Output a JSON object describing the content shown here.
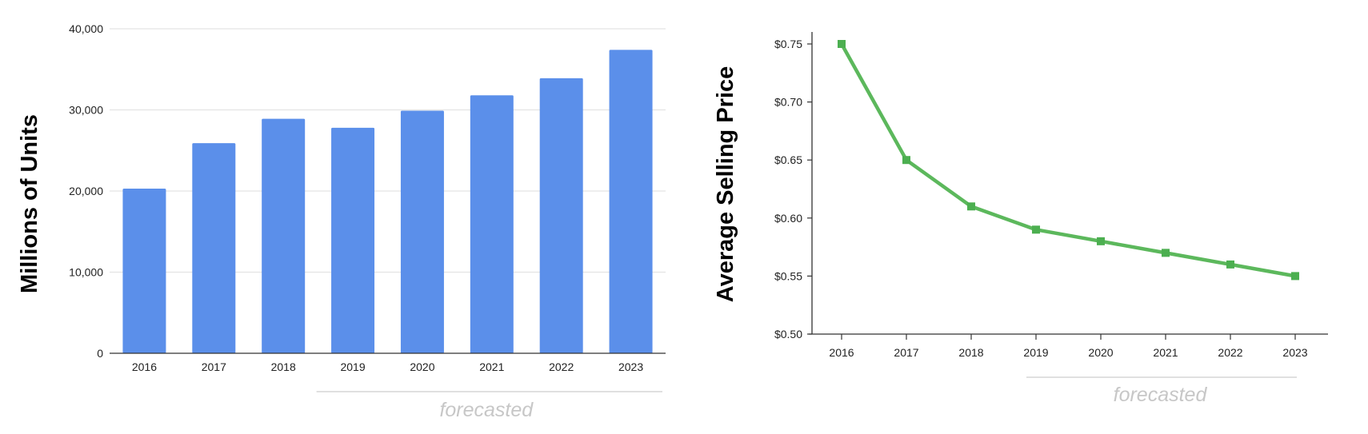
{
  "chart_data": [
    {
      "type": "bar",
      "title": "",
      "xlabel": "",
      "ylabel": "Millions of Units",
      "categories": [
        "2016",
        "2017",
        "2018",
        "2019",
        "2020",
        "2021",
        "2022",
        "2023"
      ],
      "values": [
        20300,
        25900,
        28900,
        27800,
        29900,
        31800,
        33900,
        37400
      ],
      "ylim": [
        0,
        40000
      ],
      "yticks": [
        0,
        10000,
        20000,
        30000,
        40000
      ],
      "ytick_labels": [
        "0",
        "10,000",
        "20,000",
        "30,000",
        "40,000"
      ],
      "grid": true,
      "annotation": {
        "text": "forecasted",
        "from": "2019",
        "to": "2023"
      },
      "colors": {
        "bar": "#5b8fea",
        "grid": "#e3e3e3",
        "axis": "#333333",
        "annotation": "#c7c7c7"
      }
    },
    {
      "type": "line",
      "title": "",
      "xlabel": "",
      "ylabel": "Average Selling Price",
      "categories": [
        "2016",
        "2017",
        "2018",
        "2019",
        "2020",
        "2021",
        "2022",
        "2023"
      ],
      "values": [
        0.75,
        0.65,
        0.61,
        0.59,
        0.58,
        0.57,
        0.56,
        0.55
      ],
      "ylim": [
        0.5,
        0.75
      ],
      "yticks": [
        0.5,
        0.55,
        0.6,
        0.65,
        0.7,
        0.75
      ],
      "ytick_labels": [
        "$0.50",
        "$0.55",
        "$0.60",
        "$0.65",
        "$0.70",
        "$0.75"
      ],
      "grid": false,
      "marker": "square",
      "annotation": {
        "text": "forecasted",
        "from": "2019",
        "to": "2023"
      },
      "colors": {
        "line": "#5cb85c",
        "marker": "#4caf50",
        "axis": "#333333",
        "annotation": "#c7c7c7"
      }
    }
  ]
}
